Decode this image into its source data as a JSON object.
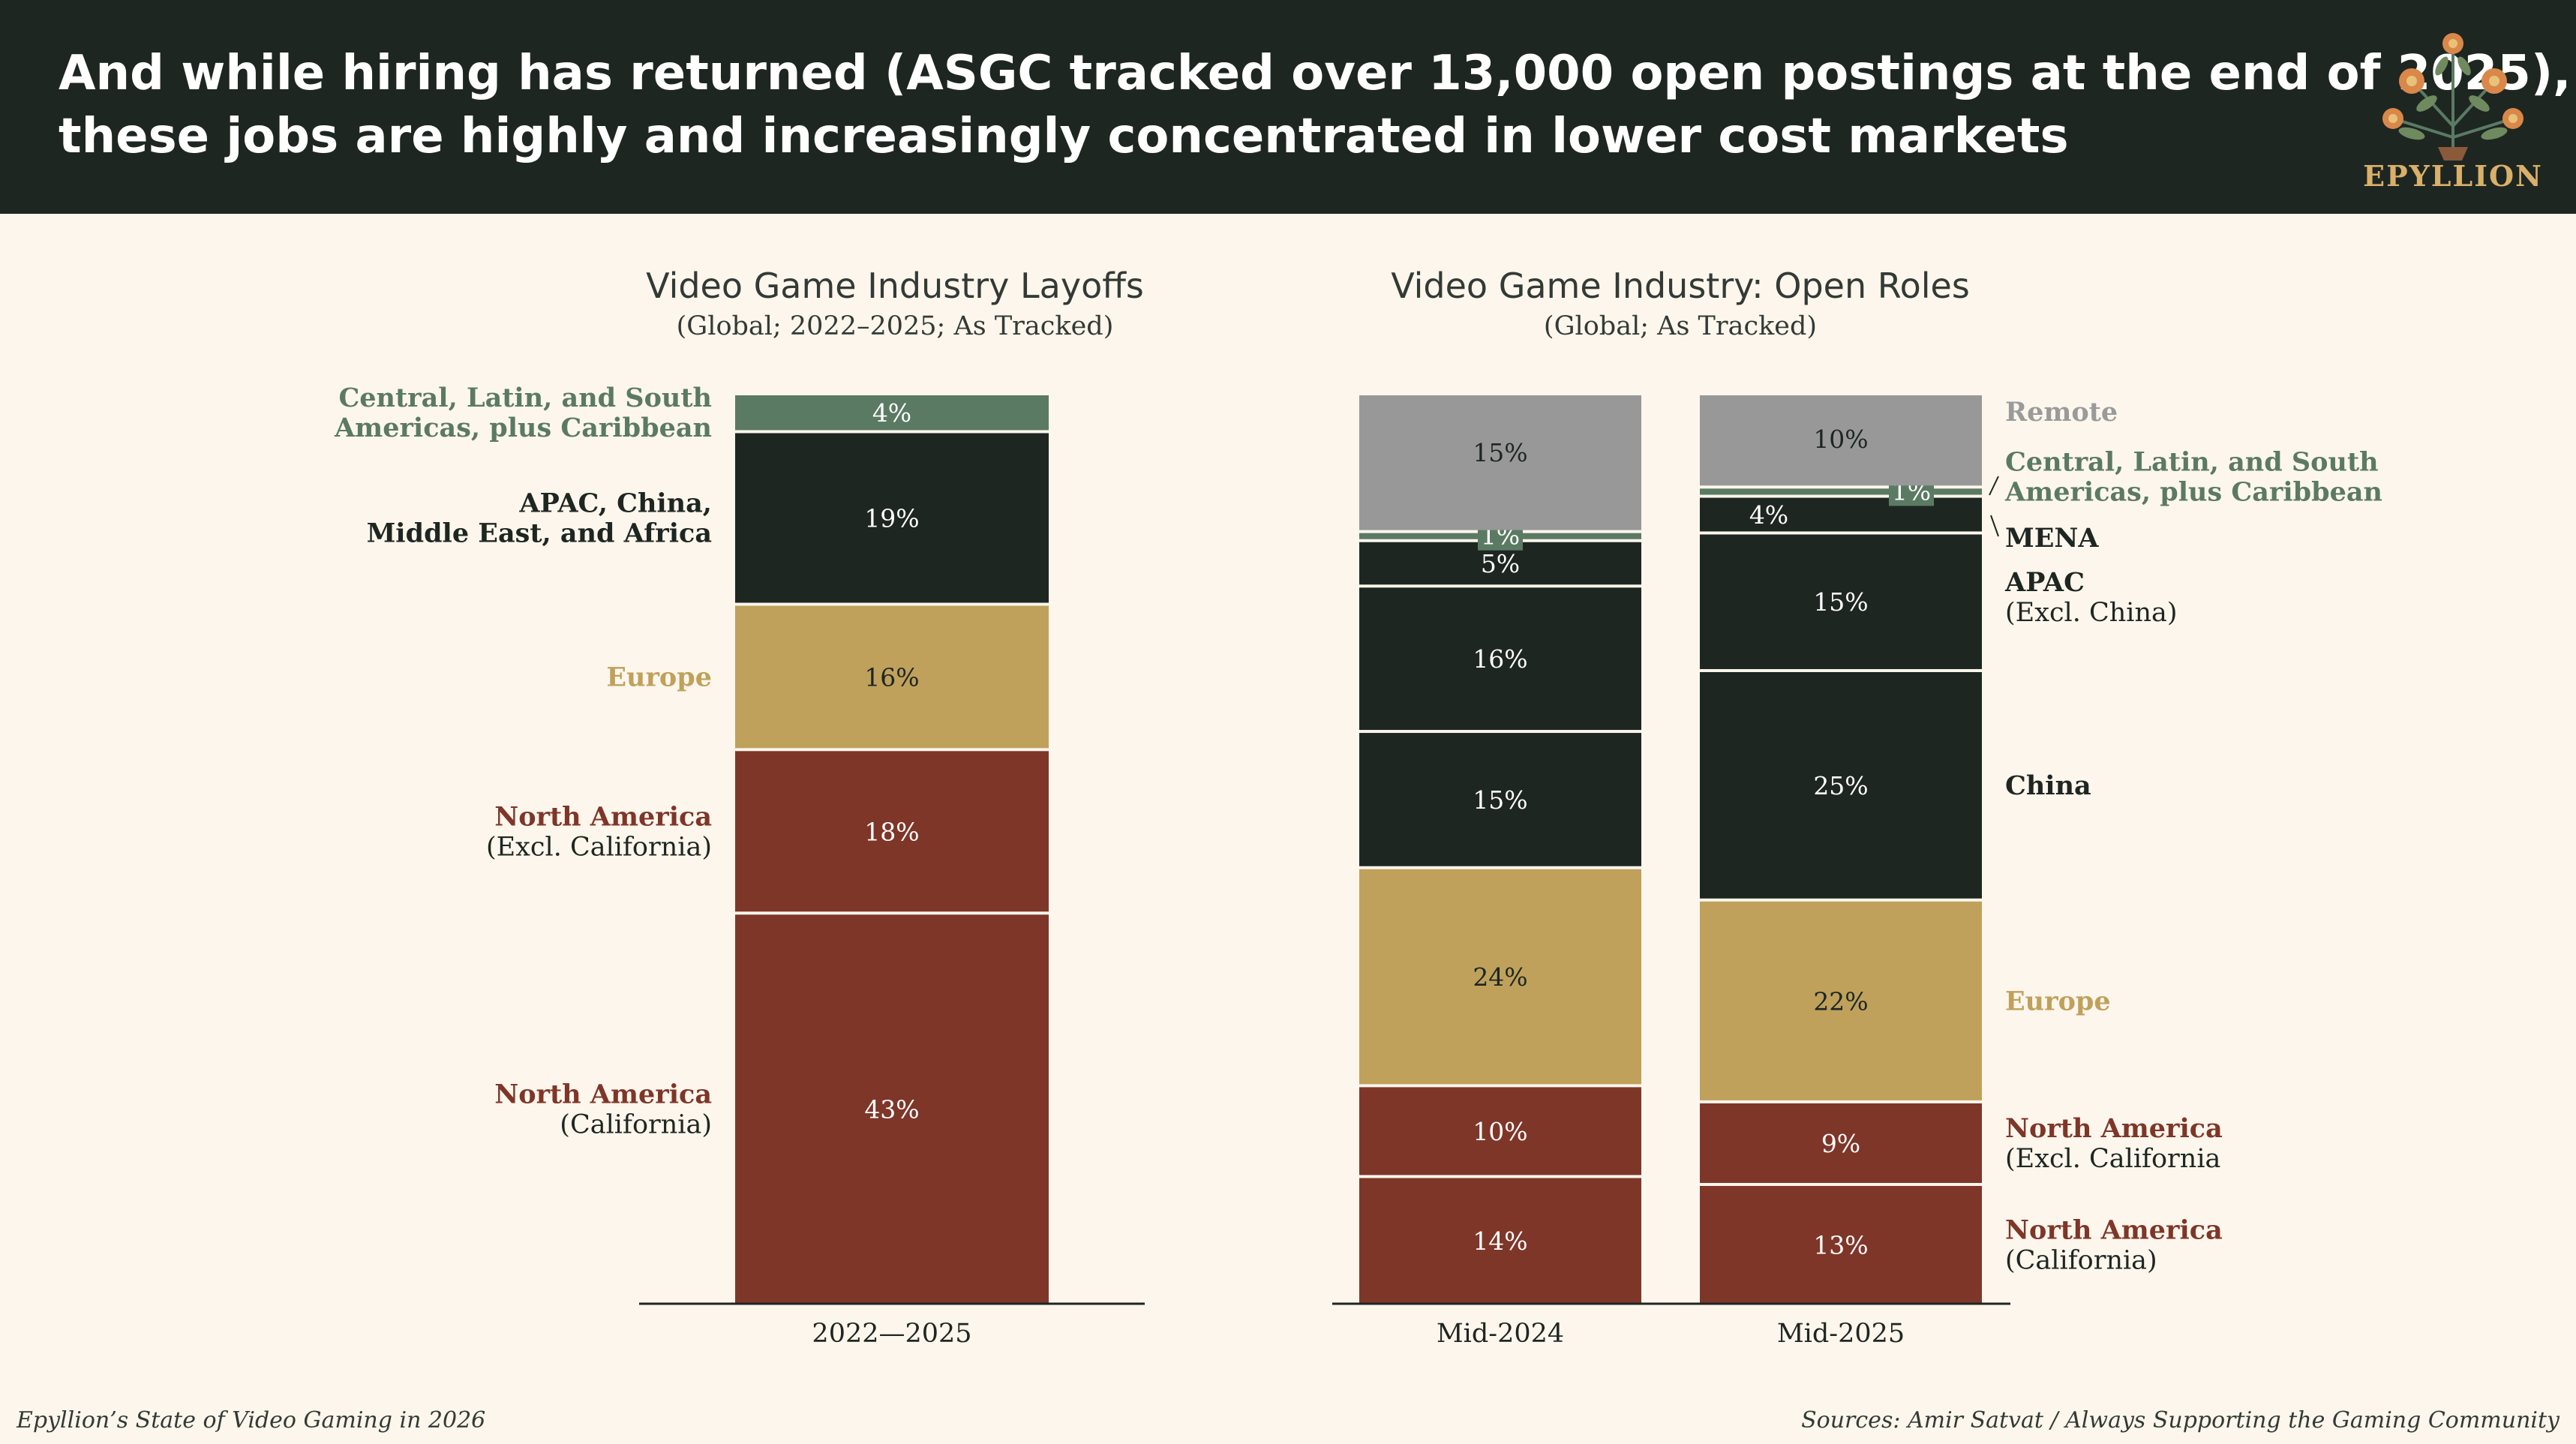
{
  "header": {
    "title_line1": "And while hiring has returned (ASGC tracked over 13,000 open postings at the end of 2025),",
    "title_line2": "these jobs are highly and increasingly concentrated in lower cost markets",
    "logo_text": "EPYLLION"
  },
  "footer": {
    "left": "Epyllion’s State of Video Gaming in 2026",
    "right": "Sources: Amir Satvat / Always Supporting the Gaming Community"
  },
  "colors": {
    "background": "#fcf6ec",
    "header_bg": "#1e2622",
    "dark_green": "#1e2622",
    "sage": "#5b7a63",
    "gold": "#bfa15c",
    "brown": "#7e3629",
    "gray": "#989898",
    "remote_label": "#9a9a9a"
  },
  "chart_data": [
    {
      "type": "bar",
      "stacked": true,
      "title": "Video Game Industry Layoffs",
      "subtitle": "(Global; 2022–2025; As Tracked)",
      "categories": [
        "2022—2025"
      ],
      "segments": [
        {
          "key": "na_cal",
          "value": 43,
          "label": "43%",
          "color": "#7e3629",
          "text_color": "#ffffff"
        },
        {
          "key": "na_excl",
          "value": 18,
          "label": "18%",
          "color": "#7e3629",
          "text_color": "#ffffff"
        },
        {
          "key": "europe",
          "value": 16,
          "label": "16%",
          "color": "#bfa15c",
          "text_color": "#1e2622"
        },
        {
          "key": "apac_mea",
          "value": 19,
          "label": "19%",
          "color": "#1e2622",
          "text_color": "#ffffff"
        },
        {
          "key": "latam",
          "value": 4,
          "label": "4%",
          "color": "#5b7a63",
          "text_color": "#ffffff"
        }
      ],
      "legend": [
        {
          "lines": [
            "Central, Latin, and South",
            "Americas, plus Caribbean"
          ],
          "color": "#5b7a63",
          "bold": true,
          "segment": "latam"
        },
        {
          "lines": [
            "APAC, China,",
            "Middle East, and Africa"
          ],
          "color": "#1e2622",
          "bold": true,
          "segment": "apac_mea"
        },
        {
          "lines": [
            "Europe"
          ],
          "color": "#bfa15c",
          "bold": true,
          "segment": "europe"
        },
        {
          "lines": [
            "North America",
            "(Excl. California)"
          ],
          "color": "#7e3629",
          "bold": true,
          "second_plain": true,
          "segment": "na_excl"
        },
        {
          "lines": [
            "North America",
            "(California)"
          ],
          "color": "#7e3629",
          "bold": true,
          "second_plain": true,
          "segment": "na_cal"
        }
      ]
    },
    {
      "type": "bar",
      "stacked": true,
      "title": "Video Game Industry: Open Roles",
      "subtitle": "(Global; As Tracked)",
      "categories": [
        "Mid-2024",
        "Mid-2025"
      ],
      "series": [
        {
          "key": "na_cal",
          "name": "North America (California)",
          "values": [
            14,
            13
          ],
          "labels": [
            "14%",
            "13%"
          ],
          "color": "#7e3629",
          "text_color": "#ffffff"
        },
        {
          "key": "na_excl",
          "name": "North America (Excl. California",
          "values": [
            10,
            9
          ],
          "labels": [
            "10%",
            "9%"
          ],
          "color": "#7e3629",
          "text_color": "#ffffff"
        },
        {
          "key": "europe",
          "name": "Europe",
          "values": [
            24,
            22
          ],
          "labels": [
            "24%",
            "22%"
          ],
          "color": "#bfa15c",
          "text_color": "#1e2622"
        },
        {
          "key": "china",
          "name": "China",
          "values": [
            15,
            25
          ],
          "labels": [
            "15%",
            "25%"
          ],
          "color": "#1e2622",
          "text_color": "#ffffff"
        },
        {
          "key": "apac",
          "name": "APAC (Excl. China)",
          "values": [
            16,
            15
          ],
          "labels": [
            "16%",
            "15%"
          ],
          "color": "#1e2622",
          "text_color": "#ffffff"
        },
        {
          "key": "mena",
          "name": "MENA",
          "values": [
            5,
            4
          ],
          "labels": [
            "5%",
            "4%"
          ],
          "color": "#1e2622",
          "text_color": "#ffffff"
        },
        {
          "key": "latam",
          "name": "Central, Latin, and South Americas, plus Caribbean",
          "values": [
            1,
            1
          ],
          "labels": [
            "1%",
            "1%"
          ],
          "color": "#5b7a63",
          "text_color": "#ffffff",
          "tag": true
        },
        {
          "key": "remote",
          "name": "Remote",
          "values": [
            15,
            10
          ],
          "labels": [
            "15%",
            "10%"
          ],
          "color": "#989898",
          "text_color": "#1e2622"
        }
      ],
      "legend": [
        {
          "lines": [
            "Remote"
          ],
          "color": "#9a9a9a",
          "bold": true,
          "segment": "remote"
        },
        {
          "lines": [
            "Central, Latin, and South",
            "Americas, plus Caribbean"
          ],
          "color": "#5b7a63",
          "bold": true,
          "segment": "latam"
        },
        {
          "lines": [
            "MENA"
          ],
          "color": "#1e2622",
          "bold": true,
          "segment": "mena"
        },
        {
          "lines": [
            "APAC",
            "(Excl. China)"
          ],
          "color": "#1e2622",
          "bold": true,
          "second_plain": true,
          "segment": "apac"
        },
        {
          "lines": [
            "China"
          ],
          "color": "#1e2622",
          "bold": true,
          "segment": "china"
        },
        {
          "lines": [
            "Europe"
          ],
          "color": "#bfa15c",
          "bold": true,
          "segment": "europe"
        },
        {
          "lines": [
            "North America",
            "(Excl. California"
          ],
          "color": "#7e3629",
          "bold": true,
          "second_plain": true,
          "segment": "na_excl"
        },
        {
          "lines": [
            "North America",
            "(California)"
          ],
          "color": "#7e3629",
          "bold": true,
          "second_plain": true,
          "segment": "na_cal"
        }
      ]
    }
  ]
}
